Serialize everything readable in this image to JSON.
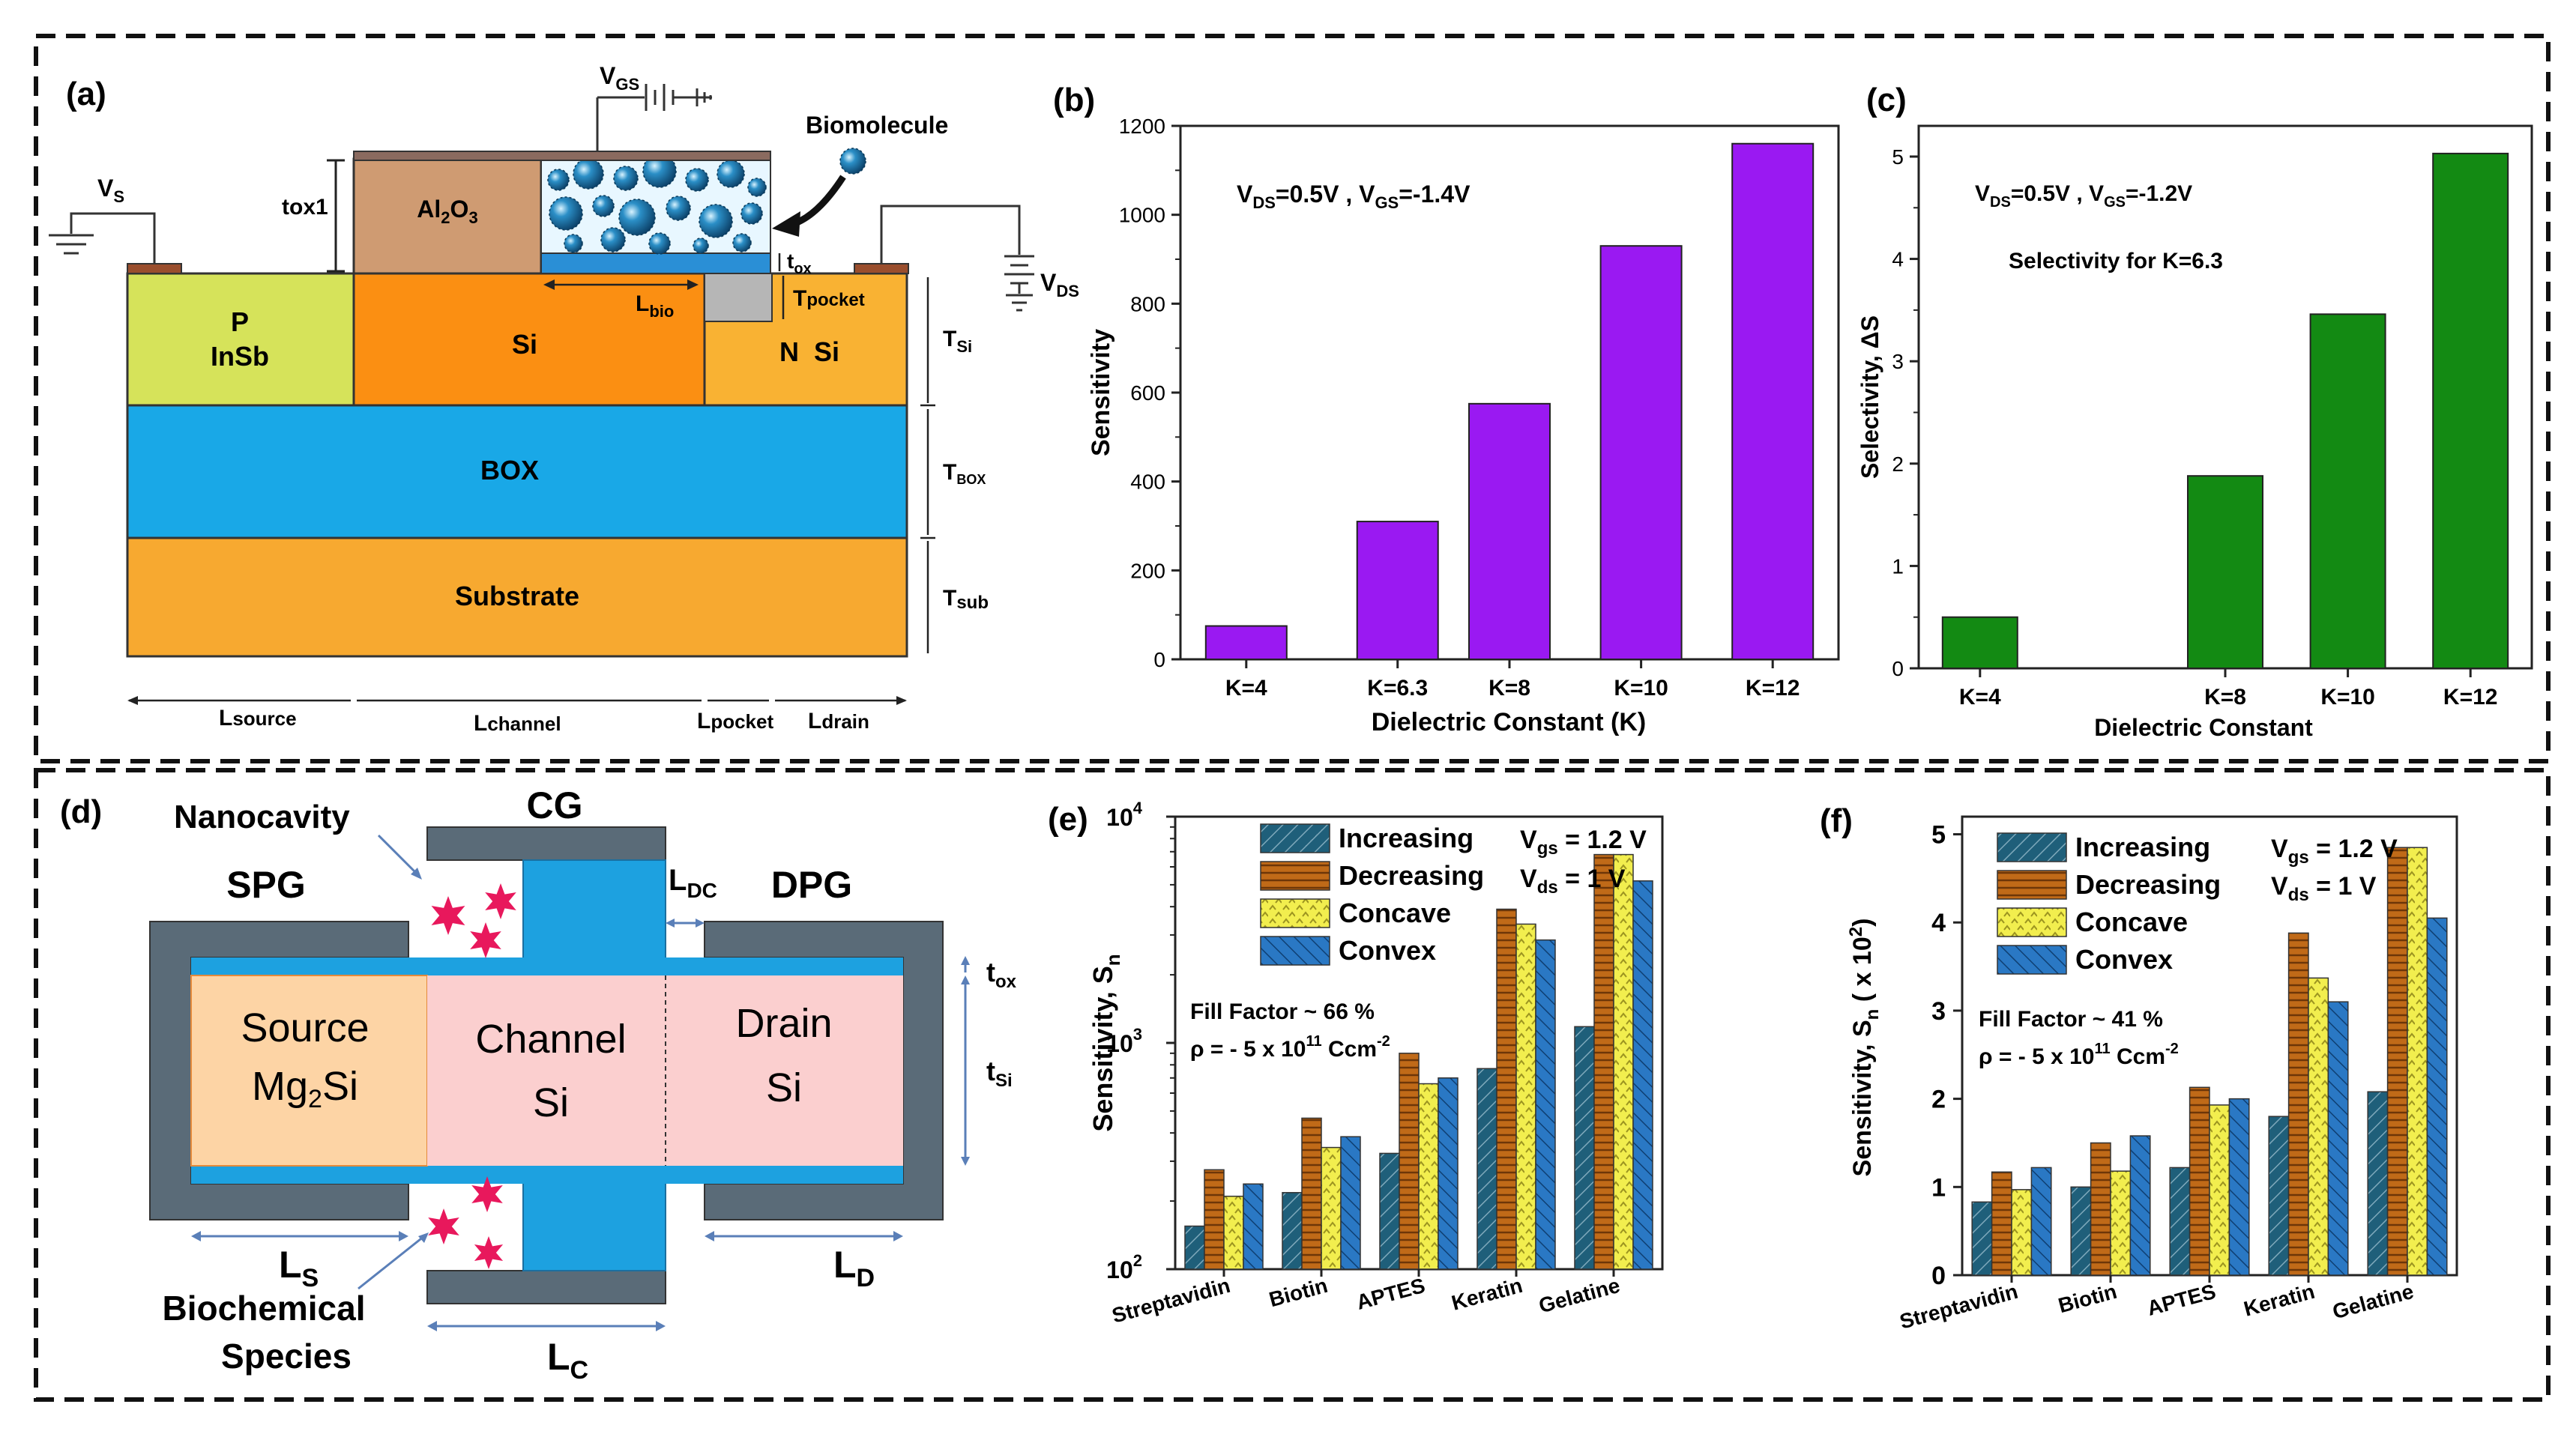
{
  "colors": {
    "purple": "#9a19f2",
    "green": "#138a13",
    "p_region": "#d6e35a",
    "si_orange": "#fb8f12",
    "n_si": "#f9b233",
    "box_blue": "#19a8e7",
    "substrate": "#f7a930",
    "al2o3": "#cf9b72",
    "gate_gray": "#5a6b78",
    "source_fill": "#fdd4a5",
    "channel_fill": "#fbcfcf",
    "inc": "#1f5f7a",
    "dec": "#c06a18",
    "conc": "#f2ee4e",
    "conv": "#2a78c4",
    "star": "#e8185c"
  },
  "panel_a": {
    "label": "(a)",
    "vgs": [
      "V",
      "GS"
    ],
    "vs": [
      "V",
      "S"
    ],
    "vds": [
      "V",
      "DS"
    ],
    "biomolecule": "Biomolecule",
    "tox1": "tox1",
    "al2o3": [
      "Al",
      "2",
      "O",
      "3"
    ],
    "tox": [
      "t",
      "ox"
    ],
    "lbio": [
      "L",
      "bio"
    ],
    "tpocket": [
      "T",
      "pocket"
    ],
    "p_line1": "P",
    "p_line2": "InSb",
    "si": "Si",
    "nsi": "N  Si",
    "box": "BOX",
    "substrate": "Substrate",
    "tsi": [
      "T",
      "Si"
    ],
    "tbox": [
      "T",
      "BOX"
    ],
    "tsub": [
      "T",
      "sub"
    ],
    "lsource": [
      "L",
      "source"
    ],
    "lchannel": [
      "L",
      "channel"
    ],
    "lpocket": [
      "L",
      "pocket"
    ],
    "ldrain": [
      "L",
      "drain"
    ]
  },
  "panel_b": {
    "label": "(b)",
    "annotation": [
      "V",
      "DS",
      "=0.5V , V",
      "GS",
      "=-1.4V"
    ],
    "chart_data": {
      "type": "bar",
      "categories": [
        "K=4",
        "K=6.3",
        "K=8",
        "K=10",
        "K=12"
      ],
      "x": [
        4,
        6.3,
        8,
        10,
        12
      ],
      "values": [
        75,
        310,
        575,
        930,
        1160
      ],
      "xlabel": "Dielectric Constant (K)",
      "ylabel": "Sensitivity",
      "ylim": [
        0,
        1200
      ],
      "yticks": [
        0,
        200,
        400,
        600,
        800,
        1000,
        1200
      ],
      "xlim": [
        3,
        13
      ]
    }
  },
  "panel_c": {
    "label": "(c)",
    "annotation": [
      "V",
      "DS",
      "=0.5V , V",
      "GS",
      "=-1.2V"
    ],
    "annotation2": "Selectivity for K=6.3",
    "chart_data": {
      "type": "bar",
      "categories": [
        "K=4",
        "K=8",
        "K=10",
        "K=12"
      ],
      "x": [
        4,
        8,
        10,
        12
      ],
      "values": [
        0.5,
        1.88,
        3.46,
        5.03
      ],
      "xlabel": "Dielectric Constant",
      "ylabel": "Selectivity, ΔS",
      "ylim": [
        0,
        5.3
      ],
      "yticks": [
        0,
        1,
        2,
        3,
        4,
        5
      ],
      "xlim": [
        3,
        13
      ]
    }
  },
  "panel_d": {
    "label": "(d)",
    "nanocavity": "Nanocavity",
    "cg": "CG",
    "spg": "SPG",
    "dpg": "DPG",
    "ldc": [
      "L",
      "DC"
    ],
    "tox": [
      "t",
      "ox"
    ],
    "tsi": [
      "t",
      "Si"
    ],
    "source_line1": "Source",
    "source_line2": [
      "Mg",
      "2",
      "Si"
    ],
    "channel_line1": "Channel",
    "channel_line2": "Si",
    "drain_line1": "Drain",
    "drain_line2": "Si",
    "ls": [
      "L",
      "S"
    ],
    "ld": [
      "L",
      "D"
    ],
    "lc": [
      "L",
      "C"
    ],
    "biochem1": "Biochemical",
    "biochem2": "Species"
  },
  "panel_e": {
    "label": "(e)",
    "conditions": [
      [
        "V",
        "gs",
        " = 1.2 V"
      ],
      [
        "V",
        "ds",
        " = 1 V"
      ]
    ],
    "fill_factor": "Fill Factor ~ 66 %",
    "rho": [
      "ρ = - 5 x 10",
      "11",
      " Ccm",
      "-2"
    ],
    "chart_data": {
      "type": "bar",
      "scale": "log",
      "categories": [
        "Streptavidin",
        "Biotin",
        "APTES",
        "Keratin",
        "Gelatine"
      ],
      "series": [
        {
          "name": "Increasing",
          "values": [
            155,
            218,
            325,
            770,
            1180
          ]
        },
        {
          "name": "Decreasing",
          "values": [
            275,
            465,
            900,
            3900,
            6800
          ]
        },
        {
          "name": "Concave",
          "values": [
            210,
            345,
            660,
            3350,
            6800
          ]
        },
        {
          "name": "Convex",
          "values": [
            238,
            385,
            700,
            2850,
            5200
          ]
        }
      ],
      "ylabel": "Sensitivity, S",
      "ylabel_sub": "n",
      "ylim": [
        100,
        10000
      ],
      "yticks": [
        {
          "base": "10",
          "exp": "2",
          "value": 100
        },
        {
          "base": "10",
          "exp": "3",
          "value": 1000
        },
        {
          "base": "10",
          "exp": "4",
          "value": 10000
        }
      ]
    }
  },
  "panel_f": {
    "label": "(f)",
    "conditions": [
      [
        "V",
        "gs",
        " = 1.2 V"
      ],
      [
        "V",
        "ds",
        " = 1 V"
      ]
    ],
    "fill_factor": "Fill Factor ~ 41 %",
    "rho": [
      "ρ = - 5 x 10",
      "11",
      " Ccm",
      "-2"
    ],
    "chart_data": {
      "type": "bar",
      "categories": [
        "Streptavidin",
        "Biotin",
        "APTES",
        "Keratin",
        "Gelatine"
      ],
      "series": [
        {
          "name": "Increasing",
          "values": [
            0.83,
            1.0,
            1.22,
            1.8,
            2.08
          ]
        },
        {
          "name": "Decreasing",
          "values": [
            1.17,
            1.5,
            2.13,
            3.88,
            4.85
          ]
        },
        {
          "name": "Concave",
          "values": [
            0.97,
            1.18,
            1.93,
            3.37,
            4.85
          ]
        },
        {
          "name": "Convex",
          "values": [
            1.22,
            1.58,
            2.0,
            3.1,
            4.05
          ]
        }
      ],
      "ylabel": [
        "Sensitivity, S",
        "n",
        " ( x 10",
        "2",
        ")"
      ],
      "ylim": [
        0,
        5.2
      ],
      "yticks": [
        0,
        1,
        2,
        3,
        4,
        5
      ]
    }
  }
}
